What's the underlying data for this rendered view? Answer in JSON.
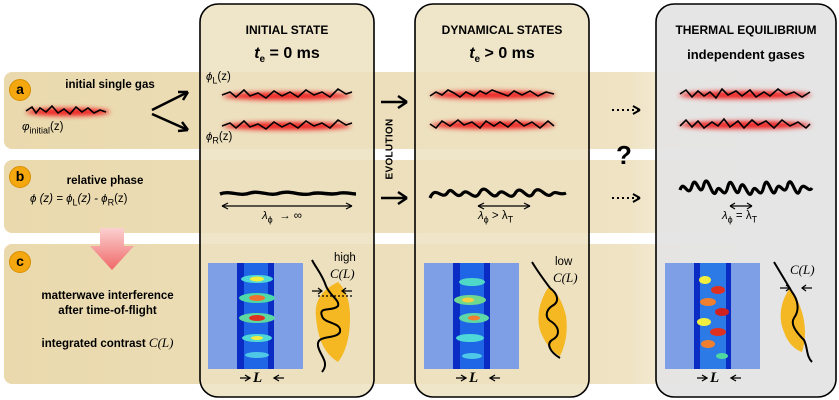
{
  "rows": {
    "a": {
      "badge": "a",
      "title": "initial single gas",
      "phi_label": "φ",
      "phi_sub": "initial",
      "phi_arg": "(z)"
    },
    "b": {
      "badge": "b",
      "title": "relative phase",
      "formula": "ϕ (z) = ϕ",
      "formula_sub1": "L",
      "formula_mid": "(z) - ϕ",
      "formula_sub2": "R",
      "formula_end": "(z)"
    },
    "c": {
      "badge": "c",
      "title_line1": "matterwave interference",
      "title_line2": "after time-of-flight",
      "contrast_label": "integrated contrast",
      "contrast_sym": "C(L)"
    }
  },
  "columns": {
    "initial": {
      "header": "INITIAL STATE",
      "time_sym": "t",
      "time_sub": "e",
      "time_rest": " = 0 ms",
      "phi_L": "ϕ",
      "phi_L_sub": "L",
      "phi_L_arg": "(z)",
      "phi_R": "ϕ",
      "phi_R_sub": "R",
      "phi_R_arg": "(z)",
      "lambda": "λ",
      "lambda_sub": "ϕ",
      "lambda_rest": "→ ∞",
      "contrast_word": "high",
      "contrast_sym": "C(L)",
      "L_label": "L"
    },
    "dynamical": {
      "header": "DYNAMICAL STATES",
      "time_sym": "t",
      "time_sub": "e",
      "time_rest": " > 0 ms",
      "lambda": "λ",
      "lambda_sub": "ϕ",
      "lambda_rest": "> λ",
      "lambda_rest_sub": "T",
      "contrast_word": "low",
      "contrast_sym": "C(L)",
      "L_label": "L"
    },
    "thermal": {
      "header": "THERMAL EQUILIBRIUM",
      "subheader": "independent gases",
      "lambda": "λ",
      "lambda_sub": "ϕ",
      "lambda_rest": "= λ",
      "lambda_rest_sub": "T",
      "contrast_sym": "C(L)",
      "L_label": "L"
    }
  },
  "evolution_label": "EVOLUTION",
  "question_mark": "?",
  "colors": {
    "band": "#e9dcb4",
    "panel": "#eadfbc",
    "thermal_panel": "#e2e2e2",
    "accent": "#f4a70f",
    "red": "#e02020",
    "arrow_pink": "#f08080"
  }
}
